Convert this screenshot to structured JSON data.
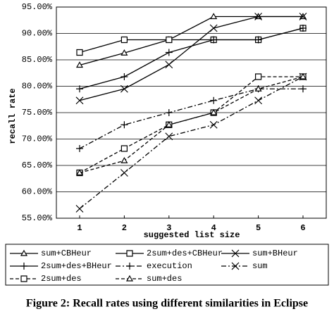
{
  "chart_data": {
    "type": "line",
    "caption": "Figure 2: Recall rates using different similarities in Eclipse",
    "xlabel": "suggested list size",
    "ylabel": "recall rate",
    "categories": [
      "1",
      "2",
      "3",
      "4",
      "5",
      "6"
    ],
    "ylim": [
      55,
      95
    ],
    "yticks": [
      {
        "value": 55,
        "label": "55.00%"
      },
      {
        "value": 60,
        "label": "60.00%"
      },
      {
        "value": 65,
        "label": "65.00%"
      },
      {
        "value": 70,
        "label": "70.00%"
      },
      {
        "value": 75,
        "label": "75.00%"
      },
      {
        "value": 80,
        "label": "80.00%"
      },
      {
        "value": 85,
        "label": "85.00%"
      },
      {
        "value": 90,
        "label": "90.00%"
      },
      {
        "value": 95,
        "label": "95.00%"
      }
    ],
    "grid": true,
    "legend": "bottom",
    "series": [
      {
        "name": "sum+CBHeur",
        "color": "#000000",
        "dash": "solid",
        "marker": "triangle",
        "values": [
          84.0,
          86.3,
          88.8,
          93.2,
          93.2,
          93.2
        ]
      },
      {
        "name": "2sum+des+CBHeur",
        "color": "#000000",
        "dash": "solid",
        "marker": "square",
        "values": [
          86.4,
          88.8,
          88.8,
          88.8,
          88.8,
          91.0
        ]
      },
      {
        "name": "sum+BHeur",
        "color": "#000000",
        "dash": "solid",
        "marker": "x",
        "values": [
          77.3,
          79.5,
          84.1,
          91.0,
          93.2,
          93.2
        ]
      },
      {
        "name": "2sum+des+BHeur",
        "color": "#000000",
        "dash": "solid",
        "marker": "plus",
        "values": [
          79.5,
          81.8,
          86.4,
          88.8,
          88.8,
          91.0
        ]
      },
      {
        "name": "execution",
        "color": "#000000",
        "dash": "dashdot",
        "marker": "plus",
        "values": [
          68.2,
          72.7,
          75.0,
          77.3,
          79.5,
          79.5
        ]
      },
      {
        "name": "sum",
        "color": "#000000",
        "dash": "dashdot",
        "marker": "x",
        "values": [
          56.8,
          63.6,
          70.5,
          72.7,
          77.3,
          81.8
        ]
      },
      {
        "name": "2sum+des",
        "color": "#000000",
        "dash": "dashed",
        "marker": "square",
        "values": [
          63.6,
          68.2,
          72.7,
          75.0,
          81.8,
          81.8
        ]
      },
      {
        "name": "sum+des",
        "color": "#000000",
        "dash": "dashed",
        "marker": "triangle",
        "values": [
          63.6,
          65.9,
          72.7,
          75.0,
          79.5,
          81.8
        ]
      }
    ]
  }
}
